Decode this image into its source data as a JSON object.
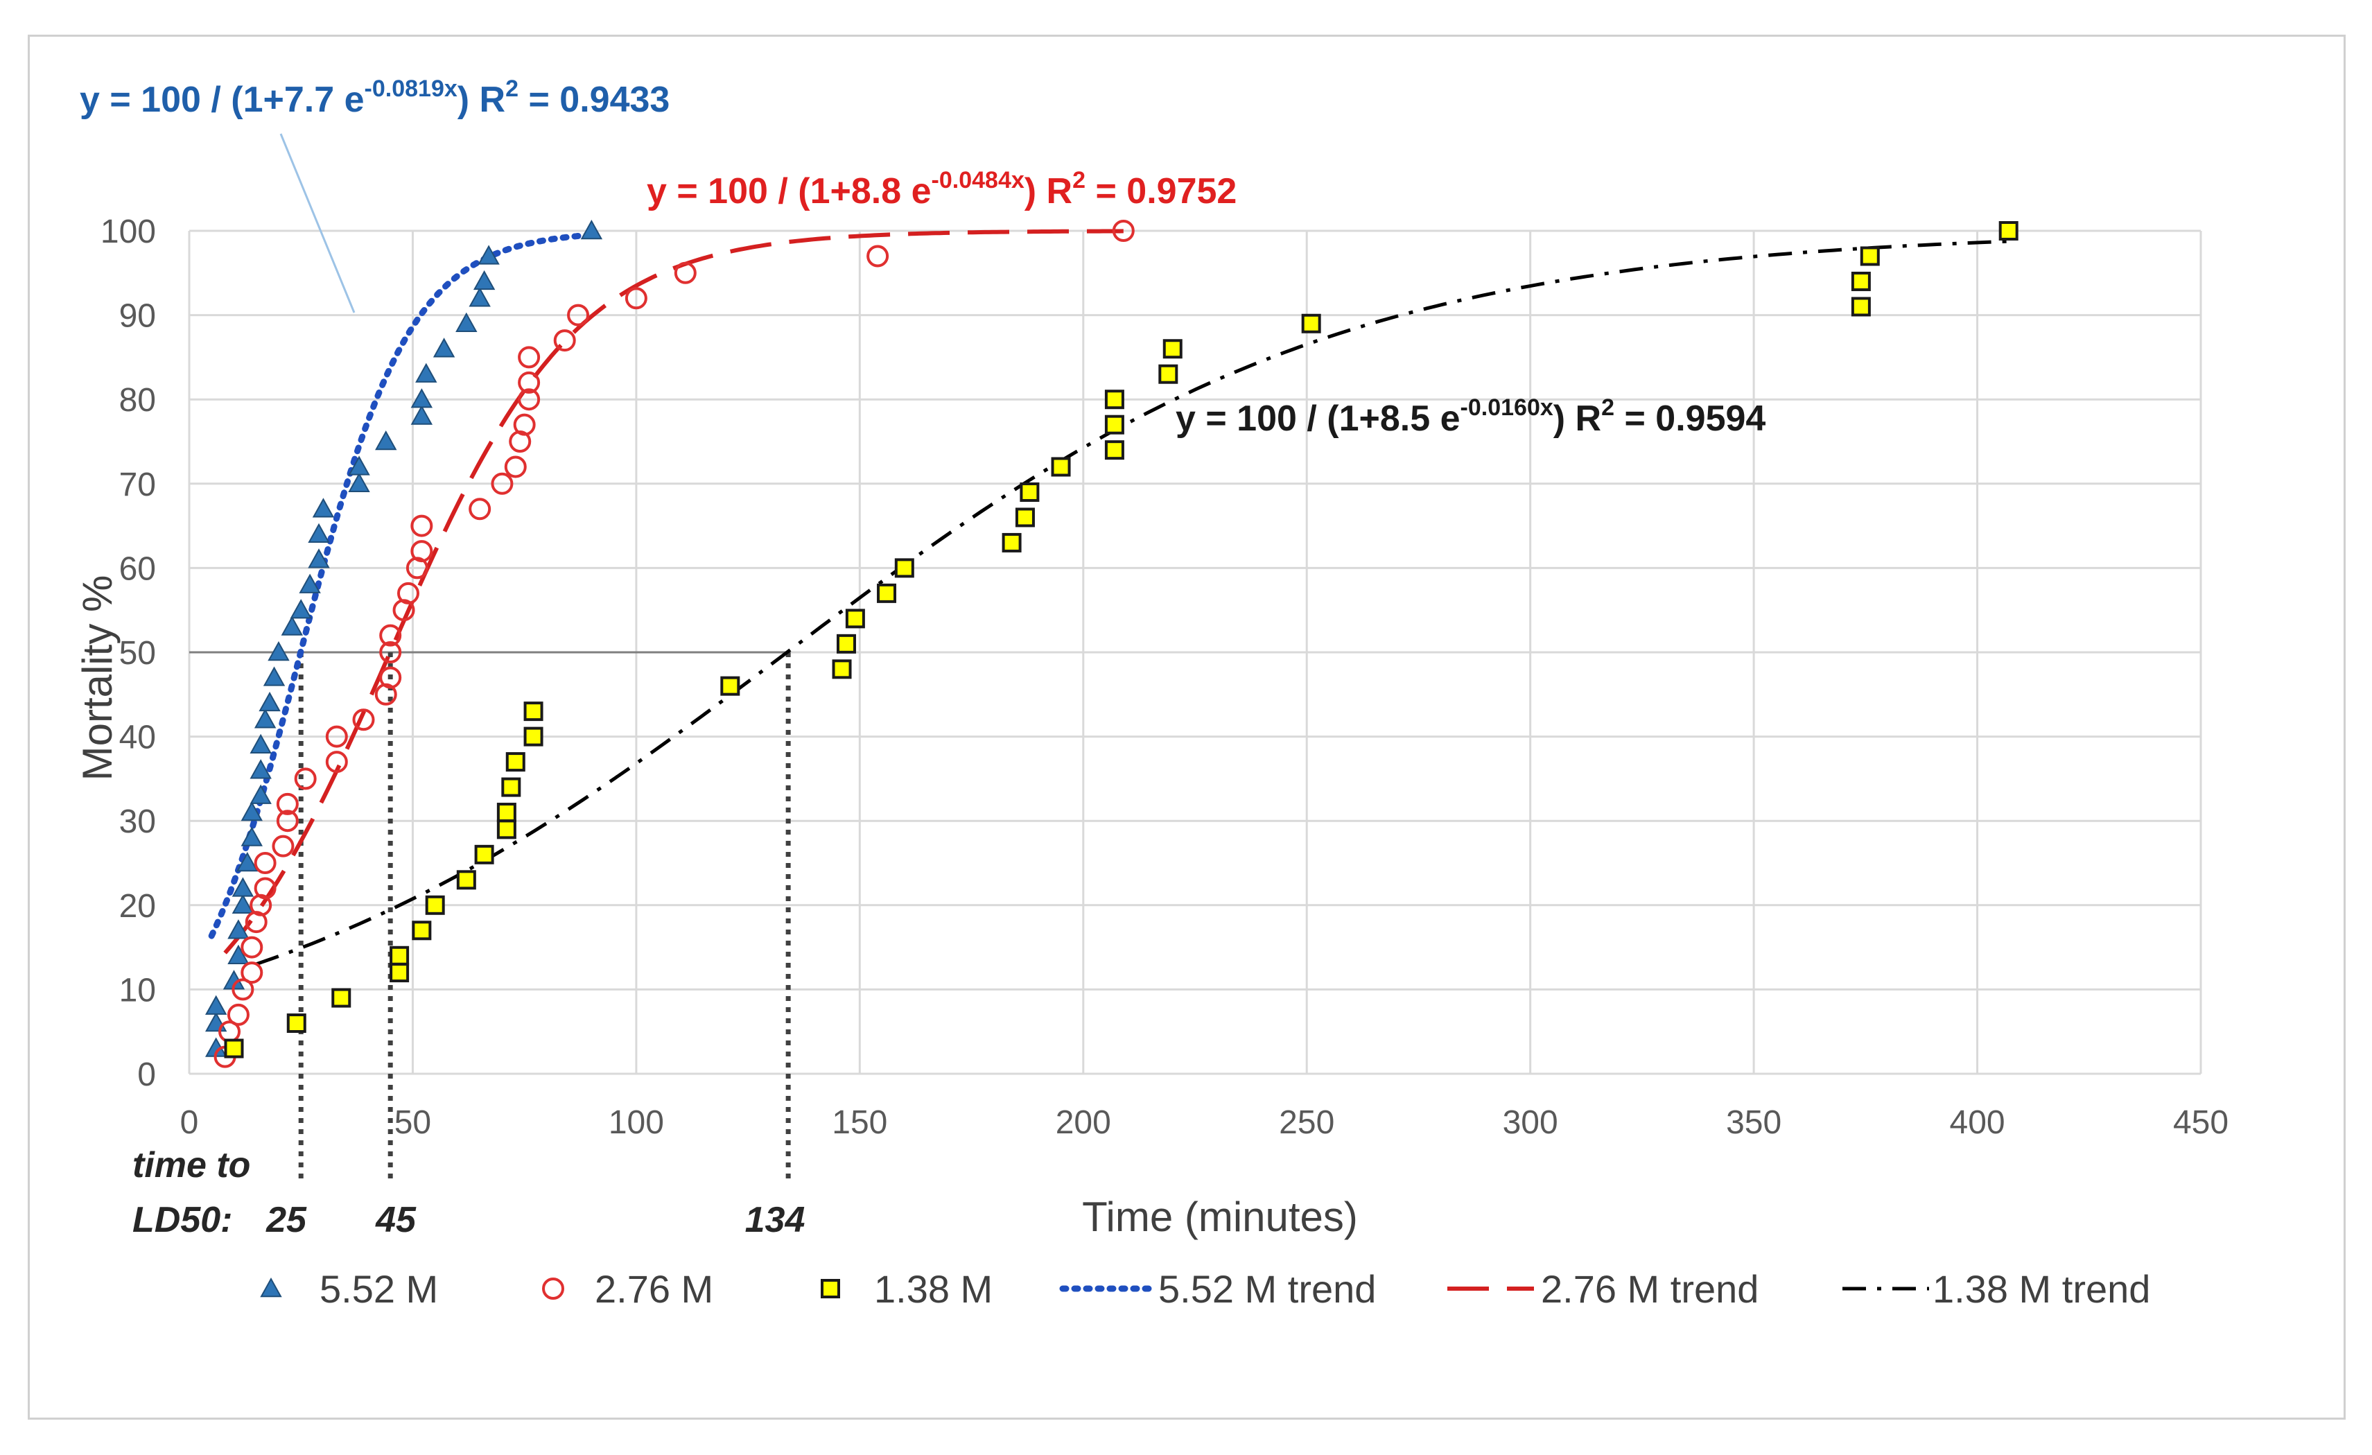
{
  "chart_data": {
    "type": "scatter",
    "title": "",
    "xlabel": "Time (minutes)",
    "ylabel": "Mortality %",
    "xlim": [
      0,
      450
    ],
    "ylim": [
      0,
      100
    ],
    "x_ticks": [
      "0",
      "50",
      "100",
      "150",
      "200",
      "250",
      "300",
      "350",
      "400",
      "450"
    ],
    "y_ticks": [
      "0",
      "10",
      "20",
      "30",
      "40",
      "50",
      "60",
      "70",
      "80",
      "90",
      "100"
    ],
    "grid": true,
    "series": [
      {
        "name": "5.52 M",
        "marker": "triangle",
        "color": "#2e75b6",
        "points": [
          [
            6,
            3
          ],
          [
            6,
            6
          ],
          [
            6,
            8
          ],
          [
            10,
            11
          ],
          [
            11,
            14
          ],
          [
            11,
            17
          ],
          [
            12,
            20
          ],
          [
            12,
            22
          ],
          [
            13,
            25
          ],
          [
            14,
            28
          ],
          [
            14,
            31
          ],
          [
            16,
            33
          ],
          [
            16,
            36
          ],
          [
            16,
            39
          ],
          [
            17,
            42
          ],
          [
            18,
            44
          ],
          [
            19,
            47
          ],
          [
            20,
            50
          ],
          [
            23,
            53
          ],
          [
            25,
            55
          ],
          [
            27,
            58
          ],
          [
            29,
            61
          ],
          [
            29,
            64
          ],
          [
            30,
            67
          ],
          [
            38,
            70
          ],
          [
            38,
            72
          ],
          [
            44,
            75
          ],
          [
            52,
            78
          ],
          [
            52,
            80
          ],
          [
            53,
            83
          ],
          [
            57,
            86
          ],
          [
            62,
            89
          ],
          [
            65,
            92
          ],
          [
            66,
            94
          ],
          [
            67,
            97
          ],
          [
            90,
            100
          ]
        ]
      },
      {
        "name": "2.76 M",
        "marker": "circle",
        "color": "#e03030",
        "points": [
          [
            8,
            2
          ],
          [
            9,
            5
          ],
          [
            11,
            7
          ],
          [
            12,
            10
          ],
          [
            14,
            12
          ],
          [
            14,
            15
          ],
          [
            15,
            18
          ],
          [
            16,
            20
          ],
          [
            17,
            22
          ],
          [
            17,
            25
          ],
          [
            21,
            27
          ],
          [
            22,
            30
          ],
          [
            22,
            32
          ],
          [
            26,
            35
          ],
          [
            33,
            37
          ],
          [
            33,
            40
          ],
          [
            39,
            42
          ],
          [
            44,
            45
          ],
          [
            45,
            47
          ],
          [
            45,
            50
          ],
          [
            45,
            52
          ],
          [
            48,
            55
          ],
          [
            49,
            57
          ],
          [
            51,
            60
          ],
          [
            52,
            62
          ],
          [
            52,
            65
          ],
          [
            65,
            67
          ],
          [
            70,
            70
          ],
          [
            73,
            72
          ],
          [
            74,
            75
          ],
          [
            75,
            77
          ],
          [
            76,
            80
          ],
          [
            76,
            82
          ],
          [
            76,
            85
          ],
          [
            84,
            87
          ],
          [
            87,
            90
          ],
          [
            100,
            92
          ],
          [
            111,
            95
          ],
          [
            154,
            97
          ],
          [
            209,
            100
          ]
        ]
      },
      {
        "name": "1.38 M",
        "marker": "square",
        "color": "#ffff00",
        "points": [
          [
            10,
            3
          ],
          [
            24,
            6
          ],
          [
            34,
            9
          ],
          [
            47,
            12
          ],
          [
            47,
            14
          ],
          [
            52,
            17
          ],
          [
            55,
            20
          ],
          [
            62,
            23
          ],
          [
            66,
            26
          ],
          [
            71,
            29
          ],
          [
            71,
            31
          ],
          [
            72,
            34
          ],
          [
            73,
            37
          ],
          [
            77,
            40
          ],
          [
            77,
            43
          ],
          [
            121,
            46
          ],
          [
            146,
            48
          ],
          [
            147,
            51
          ],
          [
            149,
            54
          ],
          [
            156,
            57
          ],
          [
            160,
            60
          ],
          [
            184,
            63
          ],
          [
            187,
            66
          ],
          [
            188,
            69
          ],
          [
            195,
            72
          ],
          [
            207,
            74
          ],
          [
            207,
            77
          ],
          [
            207,
            80
          ],
          [
            219,
            83
          ],
          [
            220,
            86
          ],
          [
            251,
            89
          ],
          [
            374,
            91
          ],
          [
            374,
            94
          ],
          [
            376,
            97
          ],
          [
            407,
            100
          ]
        ]
      }
    ],
    "trends": [
      {
        "name": "5.52 M trend",
        "color": "#1f4fbf",
        "style": "dotted",
        "A": 7.7,
        "k": 0.0819,
        "x_range": [
          5,
          90
        ]
      },
      {
        "name": "2.76 M trend",
        "color": "#d42020",
        "style": "dashed",
        "A": 8.8,
        "k": 0.0484,
        "x_range": [
          8,
          209
        ]
      },
      {
        "name": "1.38 M trend",
        "color": "#000000",
        "style": "dash-dot",
        "A": 8.5,
        "k": 0.016,
        "x_range": [
          15,
          407
        ]
      }
    ],
    "equations": [
      {
        "text": "y = 100 / (1+7.7 e",
        "exp": "-0.0819x",
        "close": ")",
        "r2_prefix": "R",
        "r2_sup": "2",
        "r2_value": " = 0.9433",
        "color": "#1f5faa"
      },
      {
        "text": "y = 100 / (1+8.8 e",
        "exp": "-0.0484x",
        "close": ")",
        "r2_prefix": "R",
        "r2_sup": "2",
        "r2_value": " = 0.9752",
        "color": "#e02020"
      },
      {
        "text": "y = 100 / (1+8.5 e",
        "exp": "-0.0160x",
        "close": ")",
        "r2_prefix": "R",
        "r2_sup": "2",
        "r2_value": " = 0.9594",
        "color": "#1a1a1a"
      }
    ],
    "ld50_line": 50,
    "ld50": {
      "label_line1": "time to",
      "label_line2": "LD50:",
      "values": [
        25,
        45,
        134
      ],
      "value_labels": [
        "25",
        "45",
        "134"
      ]
    },
    "legend": {
      "position": "bottom",
      "entries": [
        "5.52 M",
        "2.76 M",
        "1.38 M",
        "5.52 M trend",
        "2.76 M trend",
        "1.38 M trend"
      ]
    }
  }
}
